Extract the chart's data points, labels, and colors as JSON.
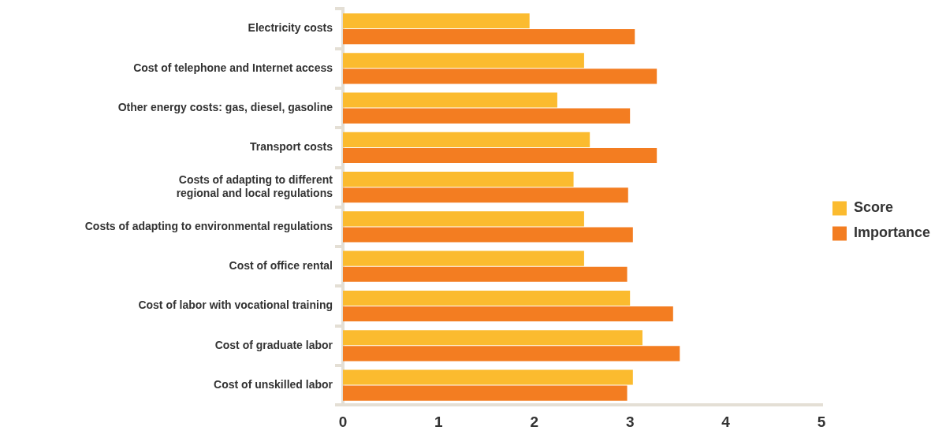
{
  "chart_data": {
    "type": "bar",
    "orientation": "horizontal",
    "categories": [
      "Electricity costs",
      "Cost of telephone and Internet access",
      "Other energy costs: gas, diesel, gasoline",
      "Transport costs",
      "Costs of adapting to different regional and local regulations",
      "Costs of adapting to environmental regulations",
      "Cost of office rental",
      "Cost of labor with vocational training",
      "Cost of graduate labor",
      "Cost of unskilled labor"
    ],
    "series": [
      {
        "name": "Score",
        "color": "#fbbb2f",
        "values": [
          1.95,
          2.52,
          2.24,
          2.58,
          2.41,
          2.52,
          2.52,
          3.0,
          3.13,
          3.03
        ]
      },
      {
        "name": "Importance",
        "color": "#f37d21",
        "values": [
          3.05,
          3.28,
          3.0,
          3.28,
          2.98,
          3.03,
          2.97,
          3.45,
          3.52,
          2.97
        ]
      }
    ],
    "xlim": [
      0,
      5
    ],
    "xticks": [
      0,
      1,
      2,
      3,
      4,
      5
    ],
    "grid": false,
    "legend": "right"
  }
}
